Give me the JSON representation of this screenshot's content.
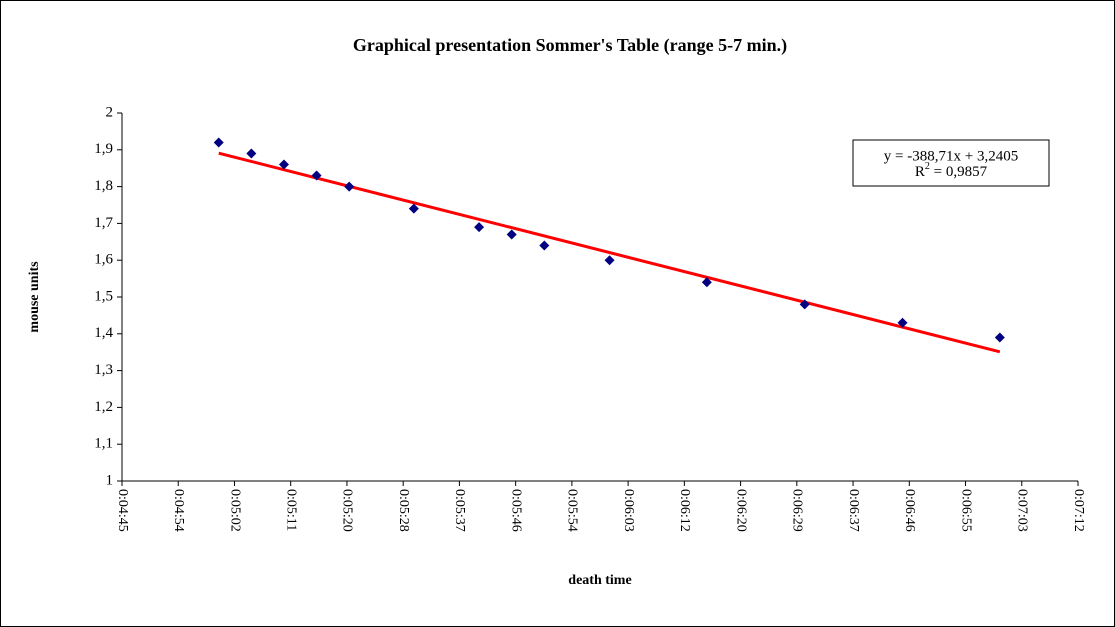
{
  "chart_data": {
    "type": "scatter",
    "title": "Graphical presentation Sommer's Table (range 5-7 min.)",
    "x_label": "death time",
    "y_label": "mouse units",
    "x": [
      0.003472,
      0.00353,
      0.003588,
      0.003646,
      0.003704,
      0.003819,
      0.003935,
      0.003993,
      0.004051,
      0.004167,
      0.00434,
      0.004514,
      0.004688,
      0.004861
    ],
    "series": [
      {
        "color": "#000080",
        "values": [
          1.92,
          1.89,
          1.86,
          1.83,
          1.8,
          1.74,
          1.69,
          1.67,
          1.64,
          1.6,
          1.54,
          1.48,
          1.43,
          1.39
        ]
      }
    ],
    "xlim": [
      0.0033,
      0.005
    ],
    "xticks": [
      {
        "value": 0.0033,
        "label": "0:04:45"
      },
      {
        "value": 0.0034,
        "label": "0:04:54"
      },
      {
        "value": 0.0035,
        "label": "0:05:02"
      },
      {
        "value": 0.0036,
        "label": "0:05:11"
      },
      {
        "value": 0.0037,
        "label": "0:05:20"
      },
      {
        "value": 0.0038,
        "label": "0:05:28"
      },
      {
        "value": 0.0039,
        "label": "0:05:37"
      },
      {
        "value": 0.004,
        "label": "0:05:46"
      },
      {
        "value": 0.0041,
        "label": "0:05:54"
      },
      {
        "value": 0.0042,
        "label": "0:06:03"
      },
      {
        "value": 0.0043,
        "label": "0:06:12"
      },
      {
        "value": 0.0044,
        "label": "0:06:20"
      },
      {
        "value": 0.0045,
        "label": "0:06:29"
      },
      {
        "value": 0.0046,
        "label": "0:06:37"
      },
      {
        "value": 0.0047,
        "label": "0:06:46"
      },
      {
        "value": 0.0048,
        "label": "0:06:55"
      },
      {
        "value": 0.0049,
        "label": "0:07:03"
      },
      {
        "value": 0.005,
        "label": "0:07:12"
      }
    ],
    "ylim": [
      1,
      2
    ],
    "yticks": [
      1,
      {
        "value": 1.1,
        "label": "1,1"
      },
      {
        "value": 1.2,
        "label": "1,2"
      },
      {
        "value": 1.3,
        "label": "1,3"
      },
      {
        "value": 1.4,
        "label": "1,4"
      },
      {
        "value": 1.5,
        "label": "1,5"
      },
      {
        "value": 1.6,
        "label": "1,6"
      },
      {
        "value": 1.7,
        "label": "1,7"
      },
      {
        "value": 1.8,
        "label": "1,8"
      },
      {
        "value": 1.9,
        "label": "1,9"
      },
      2
    ],
    "trendline": {
      "slope": -388.71,
      "intercept": 3.2405,
      "color": "#ff0000",
      "equation": "y = -388,71x + 3,2405",
      "r2_prefix": "R",
      "r2_sup": "2",
      "r2_value": " = 0,9857"
    }
  }
}
